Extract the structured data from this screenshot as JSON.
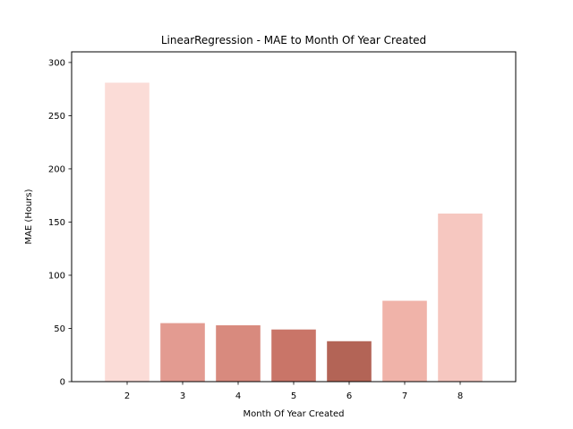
{
  "chart_data": {
    "type": "bar",
    "title": "LinearRegression - MAE to Month Of Year Created",
    "xlabel": "Month Of Year Created",
    "ylabel": "MAE (Hours)",
    "categories": [
      "2",
      "3",
      "4",
      "5",
      "6",
      "7",
      "8"
    ],
    "values": [
      281,
      55,
      53,
      49,
      38,
      76,
      158
    ],
    "bar_colors": [
      "#fbdcd7",
      "#e39b91",
      "#d88a7e",
      "#c97568",
      "#b36456",
      "#f0b3a9",
      "#f6c7c0"
    ],
    "ylim": [
      0,
      310
    ],
    "yticks": [
      0,
      50,
      100,
      150,
      200,
      250,
      300
    ],
    "grid": false,
    "legend": "none"
  }
}
